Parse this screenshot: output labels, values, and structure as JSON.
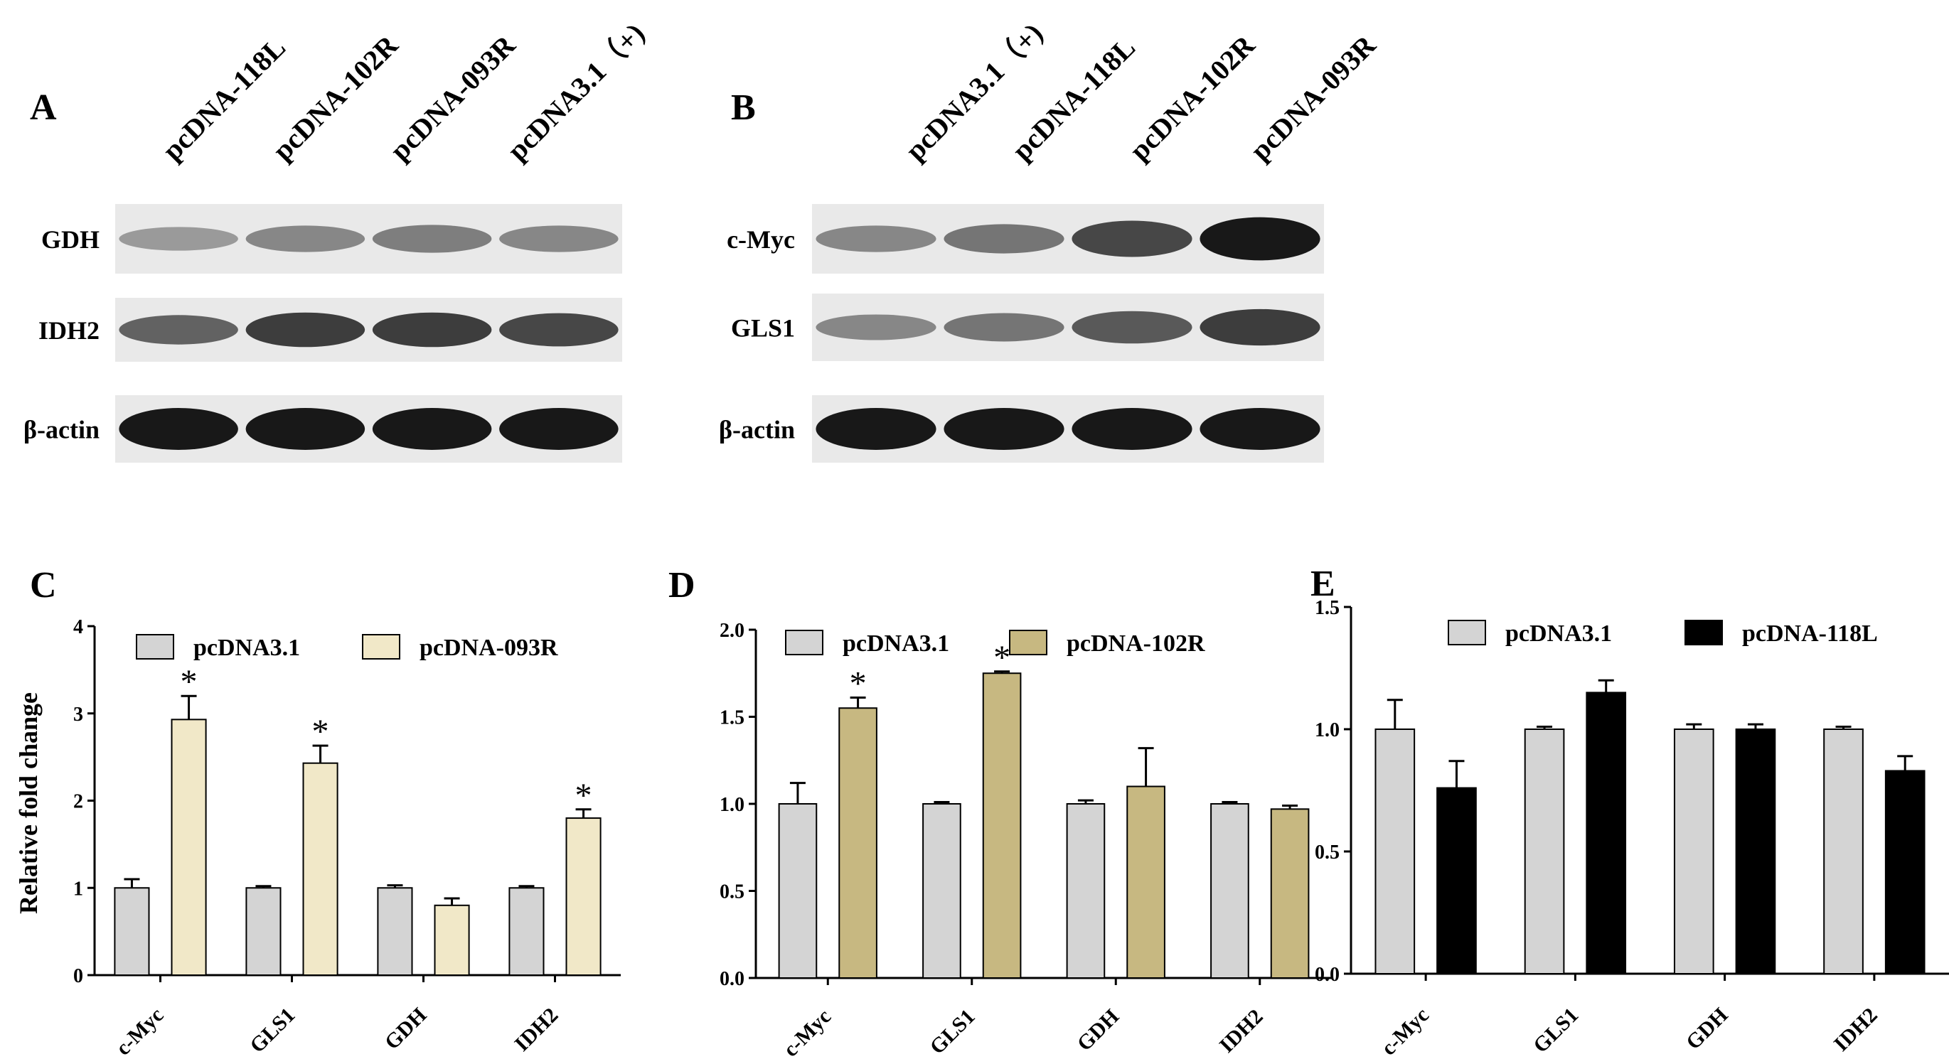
{
  "colors": {
    "control_bar": "#d4d4d4",
    "bar_c": "#f1e8c8",
    "bar_d": "#c7b881",
    "bar_e": "#000000",
    "axis": "#000000"
  },
  "blots": [
    {
      "panel": "A",
      "lanes": [
        "pcDNA-118L",
        "pcDNA-102R",
        "pcDNA-093R",
        "pcDNA3.1（+)"
      ],
      "rows": [
        {
          "label": "GDH",
          "intensity": [
            0.25,
            0.35,
            0.4,
            0.35
          ]
        },
        {
          "label": "IDH2",
          "intensity": [
            0.55,
            0.75,
            0.75,
            0.7
          ]
        },
        {
          "label": "β-actin",
          "intensity": [
            0.95,
            0.95,
            0.95,
            0.95
          ]
        }
      ]
    },
    {
      "panel": "B",
      "lanes": [
        "pcDNA3.1（+)",
        "pcDNA-118L",
        "pcDNA-102R",
        "pcDNA-093R"
      ],
      "rows": [
        {
          "label": "c-Myc",
          "intensity": [
            0.35,
            0.45,
            0.7,
            0.95
          ]
        },
        {
          "label": "GLS1",
          "intensity": [
            0.35,
            0.45,
            0.6,
            0.75
          ]
        },
        {
          "label": "β-actin",
          "intensity": [
            0.95,
            0.95,
            0.95,
            0.95
          ]
        }
      ]
    }
  ],
  "chart_data": [
    {
      "panel": "C",
      "type": "bar",
      "categories": [
        "c-Myc",
        "GLS1",
        "GDH",
        "IDH2"
      ],
      "ylabel": "Relative fold change",
      "ylim": [
        0,
        4
      ],
      "yticks": [
        "0",
        "1",
        "2",
        "3",
        "4"
      ],
      "series": [
        {
          "name": "pcDNA3.1",
          "values": [
            1.0,
            1.0,
            1.0,
            1.0
          ],
          "errors": [
            0.1,
            0.02,
            0.03,
            0.02
          ]
        },
        {
          "name": "pcDNA-093R",
          "values": [
            2.93,
            2.43,
            0.8,
            1.8
          ],
          "errors": [
            0.27,
            0.2,
            0.08,
            0.1
          ]
        }
      ],
      "significance": [
        "*",
        "*",
        "",
        "*"
      ]
    },
    {
      "panel": "D",
      "type": "bar",
      "categories": [
        "c-Myc",
        "GLS1",
        "GDH",
        "IDH2"
      ],
      "ylabel": "",
      "ylim": [
        0,
        2.0
      ],
      "yticks": [
        "0.0",
        "0.5",
        "1.0",
        "1.5",
        "2.0"
      ],
      "series": [
        {
          "name": "pcDNA3.1",
          "values": [
            1.0,
            1.0,
            1.0,
            1.0
          ],
          "errors": [
            0.12,
            0.01,
            0.02,
            0.01
          ]
        },
        {
          "name": "pcDNA-102R",
          "values": [
            1.55,
            1.75,
            1.1,
            0.97
          ],
          "errors": [
            0.06,
            0.01,
            0.22,
            0.02
          ]
        }
      ],
      "significance": [
        "*",
        "*",
        "",
        ""
      ]
    },
    {
      "panel": "E",
      "type": "bar",
      "categories": [
        "c-Myc",
        "GLS1",
        "GDH",
        "IDH2"
      ],
      "ylabel": "",
      "ylim": [
        0,
        1.5
      ],
      "yticks": [
        "0.0",
        "0.5",
        "1.0",
        "1.5"
      ],
      "series": [
        {
          "name": "pcDNA3.1",
          "values": [
            1.0,
            1.0,
            1.0,
            1.0
          ],
          "errors": [
            0.12,
            0.01,
            0.02,
            0.01
          ]
        },
        {
          "name": "pcDNA-118L",
          "values": [
            0.76,
            1.15,
            1.0,
            0.83
          ],
          "errors": [
            0.11,
            0.05,
            0.02,
            0.06
          ]
        }
      ],
      "significance": [
        "",
        "",
        "",
        ""
      ]
    }
  ]
}
